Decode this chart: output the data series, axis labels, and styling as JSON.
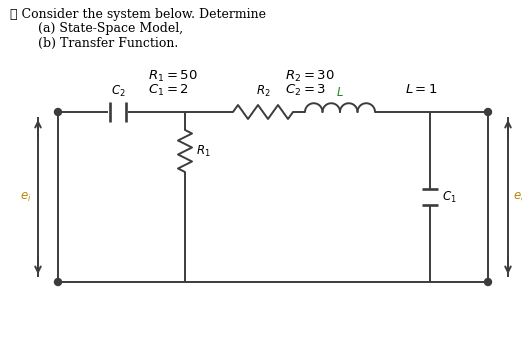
{
  "bg_color": "#ffffff",
  "text_color": "#000000",
  "circuit_color": "#3c3c3c",
  "ei_color": "#b8860b",
  "eo_color": "#b8860b",
  "L_label_color": "#228B22",
  "title_line1": "∴ Consider the system below. Determine",
  "title_line2": "(a) State-Space Model,",
  "title_line3": "(b) Transfer Function.",
  "param_R1": "R_1 = 50",
  "param_R2": "R_2 = 30",
  "param_C1": "C_1 = 2",
  "param_C2": "C_2 = 3",
  "param_L": "L = 1",
  "lbl_C2": "C_2",
  "lbl_R2": "R_2",
  "lbl_L": "L",
  "lbl_R1": "R_1",
  "lbl_C1": "C_1",
  "lbl_ei": "e_i",
  "lbl_eo": "e_o",
  "fig_w": 5.22,
  "fig_h": 3.57,
  "dpi": 100
}
